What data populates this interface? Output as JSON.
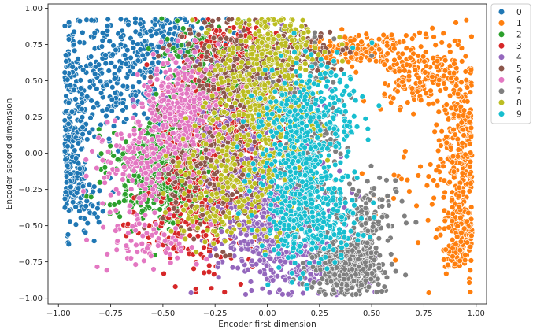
{
  "chart_data": {
    "type": "scatter",
    "title": "",
    "xlabel": "Encoder first dimension",
    "ylabel": "Encoder second dimension",
    "xlim": [
      -1.05,
      1.05
    ],
    "ylim": [
      -1.04,
      1.03
    ],
    "xticks": [
      -1.0,
      -0.75,
      -0.5,
      -0.25,
      0.0,
      0.25,
      0.5,
      0.75,
      1.0
    ],
    "xtick_labels": [
      "−1.00",
      "−0.75",
      "−0.50",
      "−0.25",
      "0.00",
      "0.25",
      "0.50",
      "0.75",
      "1.00"
    ],
    "yticks": [
      -1.0,
      -0.75,
      -0.5,
      -0.25,
      0.0,
      0.25,
      0.5,
      0.75,
      1.0
    ],
    "ytick_labels": [
      "−1.00",
      "−0.75",
      "−0.50",
      "−0.25",
      "0.00",
      "0.25",
      "0.50",
      "0.75",
      "1.00"
    ],
    "grid": false,
    "legend_position": "outside-top-right",
    "marker": "circle",
    "marker_edge_color": "#ffffff",
    "series": [
      {
        "name": "0",
        "color": "#1f77b4",
        "clusters": [
          {
            "center": [
              -0.93,
              0.05
            ],
            "spread": [
              0.04,
              0.28
            ],
            "count": 220
          },
          {
            "center": [
              -0.72,
              0.55
            ],
            "spread": [
              0.16,
              0.22
            ],
            "count": 340
          },
          {
            "center": [
              -0.45,
              0.82
            ],
            "spread": [
              0.12,
              0.08
            ],
            "count": 120
          },
          {
            "center": [
              -0.88,
              -0.3
            ],
            "spread": [
              0.05,
              0.12
            ],
            "count": 40
          }
        ]
      },
      {
        "name": "1",
        "color": "#ff7f0e",
        "clusters": [
          {
            "center": [
              0.42,
              0.72
            ],
            "spread": [
              0.12,
              0.06
            ],
            "count": 160
          },
          {
            "center": [
              0.74,
              0.55
            ],
            "spread": [
              0.11,
              0.12
            ],
            "count": 200
          },
          {
            "center": [
              0.92,
              0.0
            ],
            "spread": [
              0.05,
              0.32
            ],
            "count": 260
          },
          {
            "center": [
              0.93,
              -0.6
            ],
            "spread": [
              0.04,
              0.13
            ],
            "count": 120
          },
          {
            "center": [
              0.7,
              -0.4
            ],
            "spread": [
              0.12,
              0.2
            ],
            "count": 30
          }
        ]
      },
      {
        "name": "2",
        "color": "#2ca02c",
        "clusters": [
          {
            "center": [
              -0.48,
              -0.12
            ],
            "spread": [
              0.12,
              0.18
            ],
            "count": 700
          },
          {
            "center": [
              -0.3,
              0.35
            ],
            "spread": [
              0.1,
              0.22
            ],
            "count": 220
          },
          {
            "center": [
              -0.28,
              0.72
            ],
            "spread": [
              0.12,
              0.08
            ],
            "count": 90
          }
        ]
      },
      {
        "name": "3",
        "color": "#d62728",
        "clusters": [
          {
            "center": [
              -0.22,
              0.0
            ],
            "spread": [
              0.14,
              0.3
            ],
            "count": 650
          },
          {
            "center": [
              -0.15,
              0.72
            ],
            "spread": [
              0.1,
              0.1
            ],
            "count": 160
          },
          {
            "center": [
              -0.38,
              -0.5
            ],
            "spread": [
              0.12,
              0.15
            ],
            "count": 120
          }
        ]
      },
      {
        "name": "4",
        "color": "#9467bd",
        "clusters": [
          {
            "center": [
              0.02,
              -0.45
            ],
            "spread": [
              0.14,
              0.22
            ],
            "count": 550
          },
          {
            "center": [
              -0.1,
              0.25
            ],
            "spread": [
              0.16,
              0.25
            ],
            "count": 220
          },
          {
            "center": [
              0.22,
              -0.8
            ],
            "spread": [
              0.12,
              0.08
            ],
            "count": 120
          }
        ]
      },
      {
        "name": "5",
        "color": "#8c564b",
        "clusters": [
          {
            "center": [
              -0.12,
              0.55
            ],
            "spread": [
              0.14,
              0.18
            ],
            "count": 380
          },
          {
            "center": [
              -0.3,
              -0.1
            ],
            "spread": [
              0.15,
              0.25
            ],
            "count": 200
          },
          {
            "center": [
              0.18,
              0.7
            ],
            "spread": [
              0.1,
              0.1
            ],
            "count": 60
          }
        ]
      },
      {
        "name": "6",
        "color": "#e377c2",
        "clusters": [
          {
            "center": [
              -0.42,
              0.32
            ],
            "spread": [
              0.08,
              0.18
            ],
            "count": 300
          },
          {
            "center": [
              -0.62,
              -0.1
            ],
            "spread": [
              0.1,
              0.18
            ],
            "count": 160
          },
          {
            "center": [
              -0.55,
              -0.62
            ],
            "spread": [
              0.12,
              0.1
            ],
            "count": 70
          }
        ]
      },
      {
        "name": "7",
        "color": "#7f7f7f",
        "clusters": [
          {
            "center": [
              0.38,
              -0.78
            ],
            "spread": [
              0.08,
              0.1
            ],
            "count": 480
          },
          {
            "center": [
              0.18,
              0.15
            ],
            "spread": [
              0.1,
              0.3
            ],
            "count": 220
          },
          {
            "center": [
              0.5,
              -0.45
            ],
            "spread": [
              0.08,
              0.14
            ],
            "count": 100
          }
        ]
      },
      {
        "name": "8",
        "color": "#bcbd22",
        "clusters": [
          {
            "center": [
              -0.02,
              0.35
            ],
            "spread": [
              0.14,
              0.3
            ],
            "count": 500
          },
          {
            "center": [
              -0.22,
              -0.3
            ],
            "spread": [
              0.14,
              0.18
            ],
            "count": 160
          },
          {
            "center": [
              0.06,
              0.75
            ],
            "spread": [
              0.08,
              0.07
            ],
            "count": 80
          }
        ]
      },
      {
        "name": "9",
        "color": "#17becf",
        "clusters": [
          {
            "center": [
              0.16,
              -0.05
            ],
            "spread": [
              0.1,
              0.3
            ],
            "count": 500
          },
          {
            "center": [
              0.22,
              -0.52
            ],
            "spread": [
              0.12,
              0.12
            ],
            "count": 200
          },
          {
            "center": [
              0.3,
              0.3
            ],
            "spread": [
              0.1,
              0.18
            ],
            "count": 90
          }
        ]
      }
    ]
  }
}
